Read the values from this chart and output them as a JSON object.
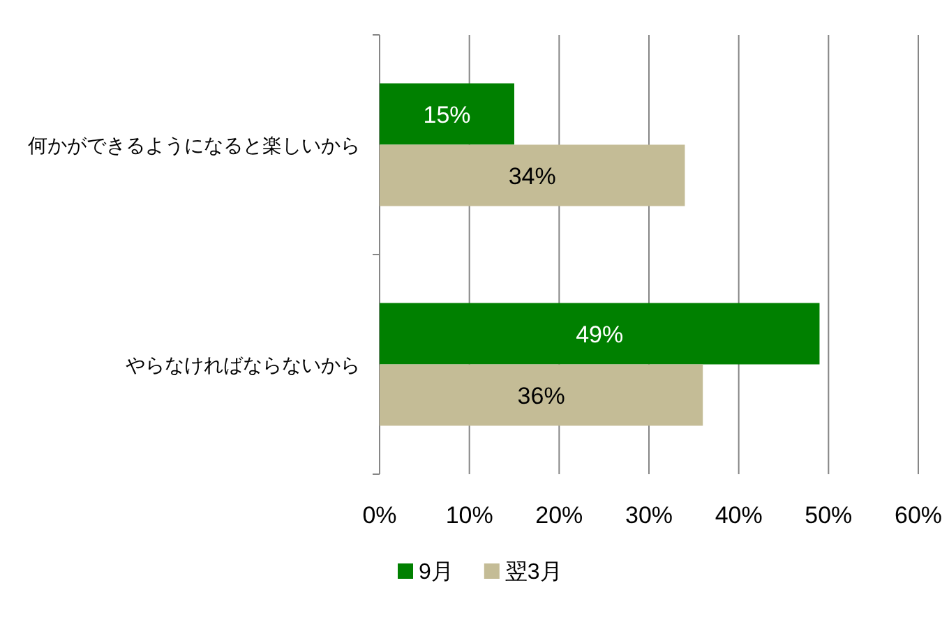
{
  "chart_data": {
    "type": "bar",
    "orientation": "horizontal",
    "categories": [
      "何かができるようになると楽しいから",
      "やらなければならないから"
    ],
    "series": [
      {
        "name": "9月",
        "color": "#008000",
        "values": [
          15,
          49
        ],
        "value_labels": [
          "15%",
          "49%"
        ]
      },
      {
        "name": "翌3月",
        "color": "#c4bc96",
        "values": [
          34,
          36
        ],
        "value_labels": [
          "34%",
          "36%"
        ]
      }
    ],
    "xlim": [
      0,
      60
    ],
    "xticks": [
      {
        "value": 0,
        "label": "0%"
      },
      {
        "value": 10,
        "label": "10%"
      },
      {
        "value": 20,
        "label": "20%"
      },
      {
        "value": 30,
        "label": "30%"
      },
      {
        "value": 40,
        "label": "40%"
      },
      {
        "value": 50,
        "label": "50%"
      },
      {
        "value": 60,
        "label": "60%"
      }
    ],
    "grid": "x",
    "legend": "bottom"
  }
}
